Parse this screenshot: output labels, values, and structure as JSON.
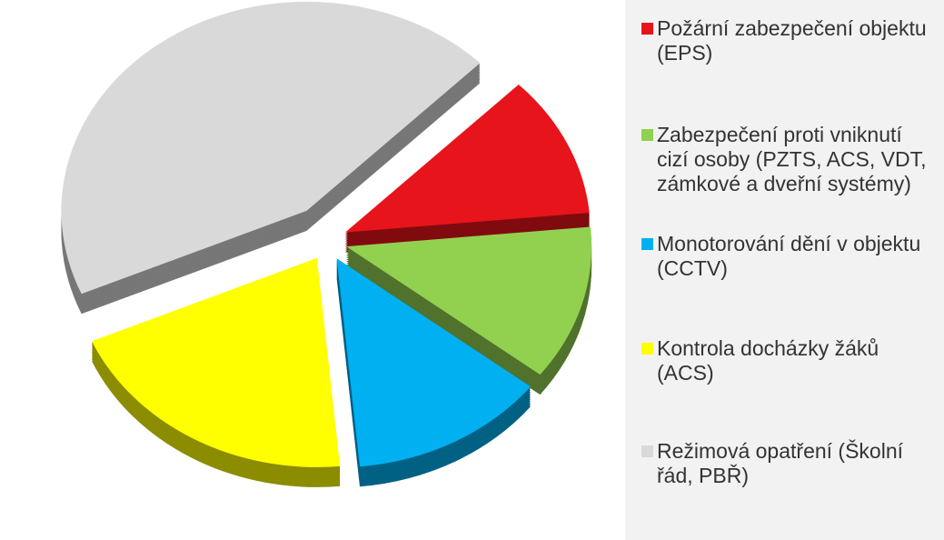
{
  "chart_data": {
    "type": "pie",
    "categories": [
      "Požární zabezpečení objektu (EPS)",
      "Zabezpečení proti vniknutí cizí osoby (PZTS, ACS, VDT, zámkové a dveřní systémy)",
      "Monotorování dění v objektu (CCTV)",
      "Kontrola docházky žáků (ACS)",
      "Režimová opatření (Školní řád, PBŘ)"
    ],
    "values": [
      11,
      12,
      13,
      20,
      44
    ],
    "colors": [
      "#e8141b",
      "#92d050",
      "#00b0f0",
      "#ffff00",
      "#d9d9d9"
    ],
    "legend": "right"
  }
}
